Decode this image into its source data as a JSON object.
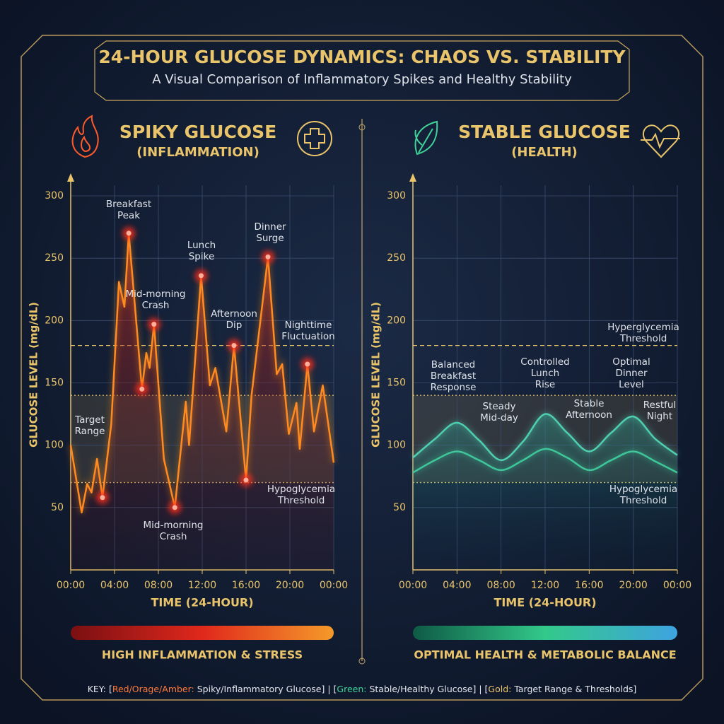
{
  "header": {
    "title": "24-HOUR GLUCOSE DYNAMICS: CHAOS VS. STABILITY",
    "subtitle": "A Visual Comparison of Inflammatory Spikes and Healthy Stability"
  },
  "chart_data": [
    {
      "type": "line",
      "title": "SPIKY GLUCOSE",
      "subtitle": "(INFLAMMATION)",
      "y_label": "GLUCOSE LEVEL (mg/dL)",
      "x_label": "TIME (24-HOUR)",
      "caption": "HIGH INFLAMMATION & STRESS",
      "x": [
        0,
        1.0,
        1.5,
        1.9,
        2.4,
        2.9,
        3.7,
        4.4,
        4.9,
        5.3,
        6.5,
        6.9,
        7.2,
        7.6,
        8.5,
        9.5,
        10.5,
        10.8,
        11.9,
        12.7,
        13.2,
        14.2,
        14.9,
        16,
        16.5,
        18,
        18.8,
        19.3,
        19.9,
        20.6,
        20.9,
        21.6,
        22.2,
        23,
        24
      ],
      "series": [
        {
          "color": "#ff8a1f",
          "values": [
            100,
            46,
            69,
            62,
            89,
            58,
            117,
            231,
            211,
            270,
            145,
            174,
            162,
            197,
            89,
            50,
            135,
            100,
            236,
            148,
            162,
            111,
            180,
            72,
            140,
            251,
            157,
            165,
            109,
            134,
            97,
            165,
            111,
            148,
            86
          ]
        }
      ],
      "xlim": [
        0,
        24
      ],
      "xticks": [
        {
          "value": 0,
          "label": "00:00"
        },
        {
          "value": 4,
          "label": "04:00"
        },
        {
          "value": 8,
          "label": "08:00"
        },
        {
          "value": 12,
          "label": "12:00"
        },
        {
          "value": 16,
          "label": "16:00"
        },
        {
          "value": 20,
          "label": "20:00"
        },
        {
          "value": 24,
          "label": "00:00"
        }
      ],
      "ylim": [
        0,
        300
      ],
      "yticks": [
        50,
        100,
        150,
        200,
        250,
        300
      ],
      "grid": true,
      "smooth": false,
      "target_range": [
        70,
        140
      ],
      "hyperglycemia": 180,
      "annotations": [
        [
          "Breakfast",
          "Peak"
        ],
        [
          "Mid-morning",
          "Crash"
        ],
        [
          "Lunch",
          "Spike"
        ],
        [
          "Afternoon",
          "Dip"
        ],
        [
          "Dinner",
          "Surge"
        ],
        [
          "Nighttime",
          "Fluctuation"
        ],
        [
          "Target",
          "Range"
        ],
        [
          "Hypoglycemia",
          "Threshold"
        ],
        [
          "Mid-morning",
          "Crash"
        ]
      ]
    },
    {
      "type": "line",
      "title": "STABLE GLUCOSE",
      "subtitle": "(HEALTH)",
      "y_label": "GLUCOSE LEVEL (mg/dL)",
      "x_label": "TIME (24-HOUR)",
      "caption": "OPTIMAL HEALTH & METABOLIC BALANCE",
      "x": [
        0,
        2,
        4,
        6,
        8,
        10,
        12,
        14,
        16,
        18,
        20,
        22,
        24
      ],
      "series": [
        {
          "color": "#4fcfb0",
          "values": [
            90,
            105,
            118,
            104,
            88,
            103,
            125,
            110,
            95,
            110,
            123,
            105,
            92
          ]
        },
        {
          "color": "#3ec79a",
          "values": [
            78,
            88,
            95,
            88,
            80,
            88,
            97,
            90,
            80,
            88,
            95,
            87,
            78
          ]
        }
      ],
      "xlim": [
        0,
        24
      ],
      "xticks": [
        {
          "value": 0,
          "label": "00:00"
        },
        {
          "value": 4,
          "label": "04:00"
        },
        {
          "value": 8,
          "label": "08:00"
        },
        {
          "value": 12,
          "label": "12:00"
        },
        {
          "value": 16,
          "label": "16:00"
        },
        {
          "value": 20,
          "label": "20:00"
        },
        {
          "value": 24,
          "label": "00:00"
        }
      ],
      "ylim": [
        0,
        300
      ],
      "yticks": [
        50,
        100,
        150,
        200,
        250,
        300
      ],
      "grid": true,
      "smooth": true,
      "target_range": [
        70,
        140
      ],
      "hyperglycemia": 180,
      "annotations": [
        [
          "Hyperglycemia",
          "Threshold"
        ],
        [
          "Balanced",
          "Breakfast",
          "Response"
        ],
        [
          "Steady",
          "Mid-day"
        ],
        [
          "Controlled",
          "Lunch",
          "Rise"
        ],
        [
          "Stable",
          "Afternoon"
        ],
        [
          "Optimal",
          "Dinner",
          "Level"
        ],
        [
          "Restful",
          "Night"
        ],
        [
          "Hypoglycemia",
          "Threshold"
        ]
      ]
    }
  ],
  "key": [
    {
      "text": "KEY: [",
      "color": "#e6e8ee"
    },
    {
      "text": "Red/Orage/Amber:",
      "color": "#ff7a3a"
    },
    {
      "text": " Spiky/Inflammatory Glucose] | [",
      "color": "#e6e8ee"
    },
    {
      "text": "Green:",
      "color": "#3fd39a"
    },
    {
      "text": " Stable/Healthy Glucose] | [",
      "color": "#e6e8ee"
    },
    {
      "text": "Gold:",
      "color": "#e9c46a"
    },
    {
      "text": " Target Range & Thresholds]",
      "color": "#e6e8ee"
    }
  ]
}
